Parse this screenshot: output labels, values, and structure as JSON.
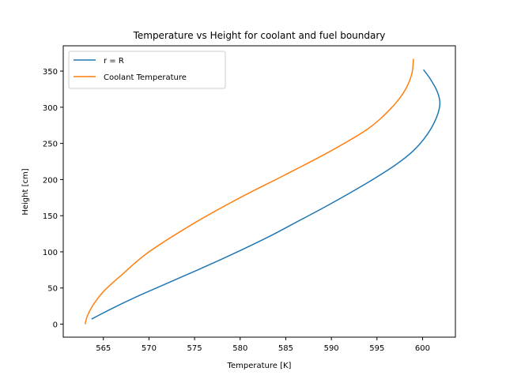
{
  "chart_data": {
    "type": "line",
    "title": "Temperature vs Height for coolant and fuel boundary",
    "xlabel": "Temperature [K]",
    "ylabel": "Height [cm]",
    "xlim": [
      560.6,
      603.6
    ],
    "ylim": [
      -18,
      385
    ],
    "xticks": [
      565,
      570,
      575,
      580,
      585,
      590,
      595,
      600
    ],
    "yticks": [
      0,
      50,
      100,
      150,
      200,
      250,
      300,
      350
    ],
    "grid": false,
    "legend": {
      "position": "upper-left"
    },
    "series": [
      {
        "name": "r = R",
        "color": "#1f77b4",
        "points": [
          [
            563.7,
            7
          ],
          [
            566.0,
            22
          ],
          [
            569.0,
            40
          ],
          [
            573.0,
            62
          ],
          [
            578.0,
            90
          ],
          [
            583.0,
            120
          ],
          [
            586.0,
            140
          ],
          [
            590.0,
            167
          ],
          [
            594.0,
            196
          ],
          [
            597.0,
            220
          ],
          [
            599.0,
            240
          ],
          [
            600.5,
            262
          ],
          [
            601.5,
            285
          ],
          [
            601.9,
            305
          ],
          [
            601.6,
            322
          ],
          [
            600.8,
            340
          ],
          [
            600.1,
            352
          ]
        ]
      },
      {
        "name": "Coolant Temperature",
        "color": "#ff7f0e",
        "points": [
          [
            563.0,
            0
          ],
          [
            563.2,
            10
          ],
          [
            563.8,
            25
          ],
          [
            565.0,
            45
          ],
          [
            567.0,
            68
          ],
          [
            570.0,
            100
          ],
          [
            575.0,
            140
          ],
          [
            580.0,
            175
          ],
          [
            585.0,
            207
          ],
          [
            590.0,
            240
          ],
          [
            594.0,
            270
          ],
          [
            596.5,
            298
          ],
          [
            598.0,
            322
          ],
          [
            598.8,
            345
          ],
          [
            599.0,
            367
          ]
        ]
      }
    ]
  }
}
